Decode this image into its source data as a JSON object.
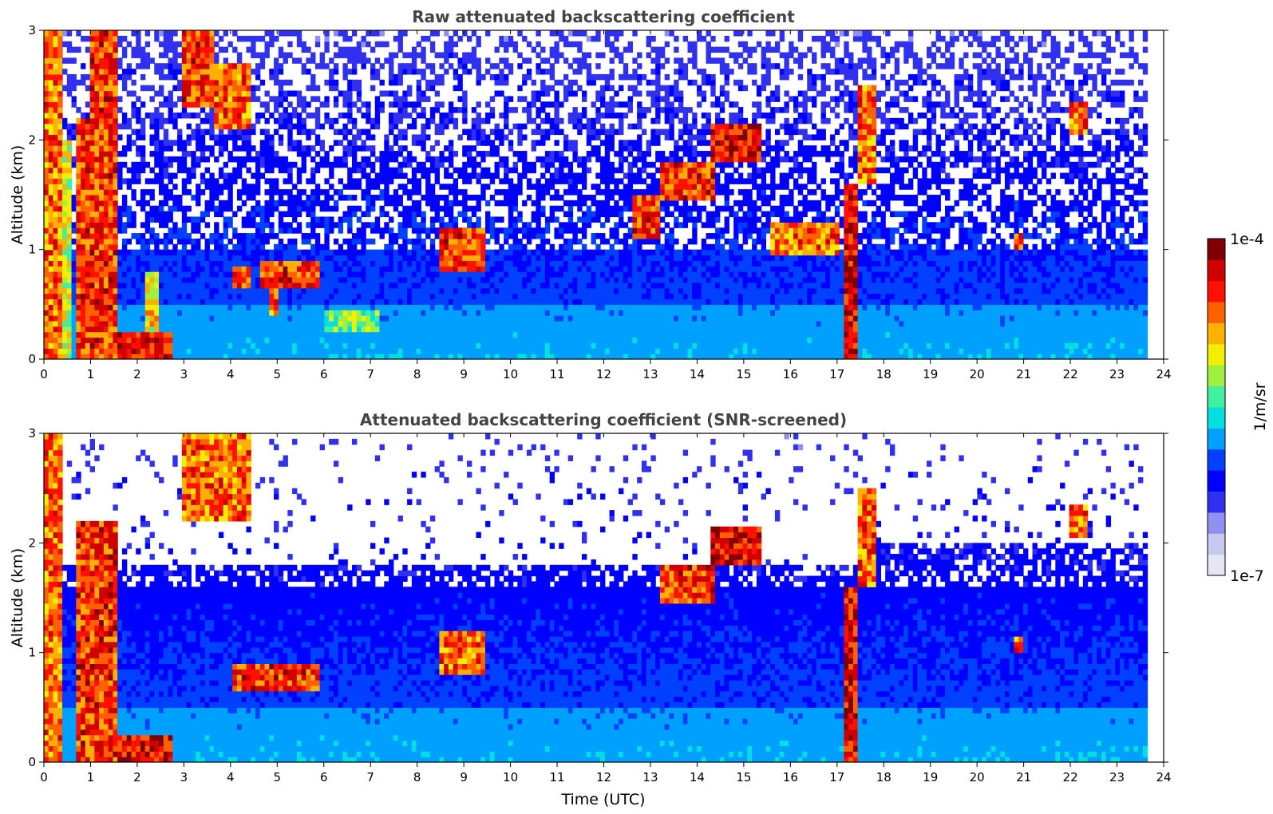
{
  "chart_data": [
    {
      "type": "heatmap",
      "title": "Raw attenuated backscattering coefficient",
      "xlabel": "",
      "ylabel": "Altitude (km)",
      "xlim": [
        0,
        24
      ],
      "ylim": [
        0,
        3
      ],
      "xticks": [
        "0",
        "1",
        "2",
        "3",
        "4",
        "5",
        "6",
        "7",
        "8",
        "9",
        "10",
        "11",
        "12",
        "13",
        "14",
        "15",
        "16",
        "17",
        "18",
        "19",
        "20",
        "21",
        "22",
        "23",
        "24"
      ],
      "yticks": [
        "0",
        "1",
        "2",
        "3"
      ],
      "data_end_time": 23.65,
      "features": [
        {
          "t0": 0.0,
          "t1": 0.35,
          "z0": 0.0,
          "z1": 3.0,
          "level": 0.9
        },
        {
          "t0": 0.35,
          "t1": 0.6,
          "z0": 0.0,
          "z1": 2.0,
          "level": 0.75
        },
        {
          "t0": 0.7,
          "t1": 1.0,
          "z0": 0.0,
          "z1": 2.2,
          "level": 0.95
        },
        {
          "t0": 1.0,
          "t1": 1.6,
          "z0": 0.0,
          "z1": 3.0,
          "level": 0.95
        },
        {
          "t0": 1.6,
          "t1": 2.8,
          "z0": 0.0,
          "z1": 0.25,
          "level": 1.0
        },
        {
          "t0": 2.2,
          "t1": 2.5,
          "z0": 0.0,
          "z1": 0.8,
          "level": 0.8
        },
        {
          "t0": 3.0,
          "t1": 3.6,
          "z0": 2.3,
          "z1": 3.0,
          "level": 0.95
        },
        {
          "t0": 3.6,
          "t1": 4.4,
          "z0": 2.1,
          "z1": 2.7,
          "level": 0.9
        },
        {
          "t0": 4.0,
          "t1": 4.4,
          "z0": 0.65,
          "z1": 0.85,
          "level": 0.95
        },
        {
          "t0": 4.6,
          "t1": 5.9,
          "z0": 0.65,
          "z1": 0.9,
          "level": 0.95
        },
        {
          "t0": 4.8,
          "t1": 5.0,
          "z0": 0.4,
          "z1": 0.65,
          "level": 0.9
        },
        {
          "t0": 6.0,
          "t1": 7.2,
          "z0": 0.25,
          "z1": 0.45,
          "level": 0.7
        },
        {
          "t0": 8.5,
          "t1": 9.5,
          "z0": 0.8,
          "z1": 1.2,
          "level": 0.95
        },
        {
          "t0": 12.6,
          "t1": 13.2,
          "z0": 1.1,
          "z1": 1.5,
          "level": 0.95
        },
        {
          "t0": 13.2,
          "t1": 14.4,
          "z0": 1.45,
          "z1": 1.8,
          "level": 0.95
        },
        {
          "t0": 14.3,
          "t1": 15.4,
          "z0": 1.8,
          "z1": 2.15,
          "level": 1.0
        },
        {
          "t0": 15.6,
          "t1": 17.0,
          "z0": 0.95,
          "z1": 1.25,
          "level": 0.9
        },
        {
          "t0": 17.1,
          "t1": 17.4,
          "z0": 0.0,
          "z1": 1.6,
          "level": 1.0
        },
        {
          "t0": 17.4,
          "t1": 17.8,
          "z0": 1.6,
          "z1": 2.5,
          "level": 0.9
        },
        {
          "t0": 20.8,
          "t1": 21.0,
          "z0": 1.0,
          "z1": 1.15,
          "level": 0.9
        },
        {
          "t0": 22.0,
          "t1": 22.4,
          "z0": 2.05,
          "z1": 2.35,
          "level": 0.9
        }
      ]
    },
    {
      "type": "heatmap",
      "title": "Attenuated backscattering coefficient (SNR-screened)",
      "xlabel": "Time (UTC)",
      "ylabel": "Altitude (km)",
      "xlim": [
        0,
        24
      ],
      "ylim": [
        0,
        3
      ],
      "xticks": [
        "0",
        "1",
        "2",
        "3",
        "4",
        "5",
        "6",
        "7",
        "8",
        "9",
        "10",
        "11",
        "12",
        "13",
        "14",
        "15",
        "16",
        "17",
        "18",
        "19",
        "20",
        "21",
        "22",
        "23",
        "24"
      ],
      "yticks": [
        "0",
        "1",
        "2",
        "3"
      ],
      "data_end_time": 23.65,
      "features": [
        {
          "t0": 0.0,
          "t1": 0.35,
          "z0": 0.0,
          "z1": 3.0,
          "level": 0.9
        },
        {
          "t0": 0.7,
          "t1": 1.6,
          "z0": 0.0,
          "z1": 2.2,
          "level": 0.95
        },
        {
          "t0": 1.6,
          "t1": 2.8,
          "z0": 0.0,
          "z1": 0.25,
          "level": 1.0
        },
        {
          "t0": 3.0,
          "t1": 4.4,
          "z0": 2.2,
          "z1": 3.0,
          "level": 0.9
        },
        {
          "t0": 4.0,
          "t1": 5.9,
          "z0": 0.65,
          "z1": 0.9,
          "level": 0.95
        },
        {
          "t0": 8.5,
          "t1": 9.5,
          "z0": 0.8,
          "z1": 1.2,
          "level": 0.9
        },
        {
          "t0": 13.2,
          "t1": 14.4,
          "z0": 1.45,
          "z1": 1.8,
          "level": 0.95
        },
        {
          "t0": 14.3,
          "t1": 15.4,
          "z0": 1.8,
          "z1": 2.15,
          "level": 1.0
        },
        {
          "t0": 17.1,
          "t1": 17.4,
          "z0": 0.0,
          "z1": 1.6,
          "level": 1.0
        },
        {
          "t0": 17.4,
          "t1": 17.8,
          "z0": 1.6,
          "z1": 2.5,
          "level": 0.9
        },
        {
          "t0": 20.8,
          "t1": 21.0,
          "z0": 1.0,
          "z1": 1.15,
          "level": 0.9
        },
        {
          "t0": 22.0,
          "t1": 22.4,
          "z0": 2.05,
          "z1": 2.35,
          "level": 0.9
        }
      ]
    }
  ],
  "colorbar": {
    "label": "1/m/sr",
    "max_label": "1e-4",
    "min_label": "1e-7",
    "colors": [
      "#e6e6f5",
      "#c8c8f0",
      "#9090f0",
      "#3030f0",
      "#0000ff",
      "#0040ff",
      "#00a0ff",
      "#00e0e0",
      "#40f0a0",
      "#a0f040",
      "#f0f000",
      "#ffb000",
      "#ff6000",
      "#ff1000",
      "#d00000",
      "#800000"
    ]
  }
}
